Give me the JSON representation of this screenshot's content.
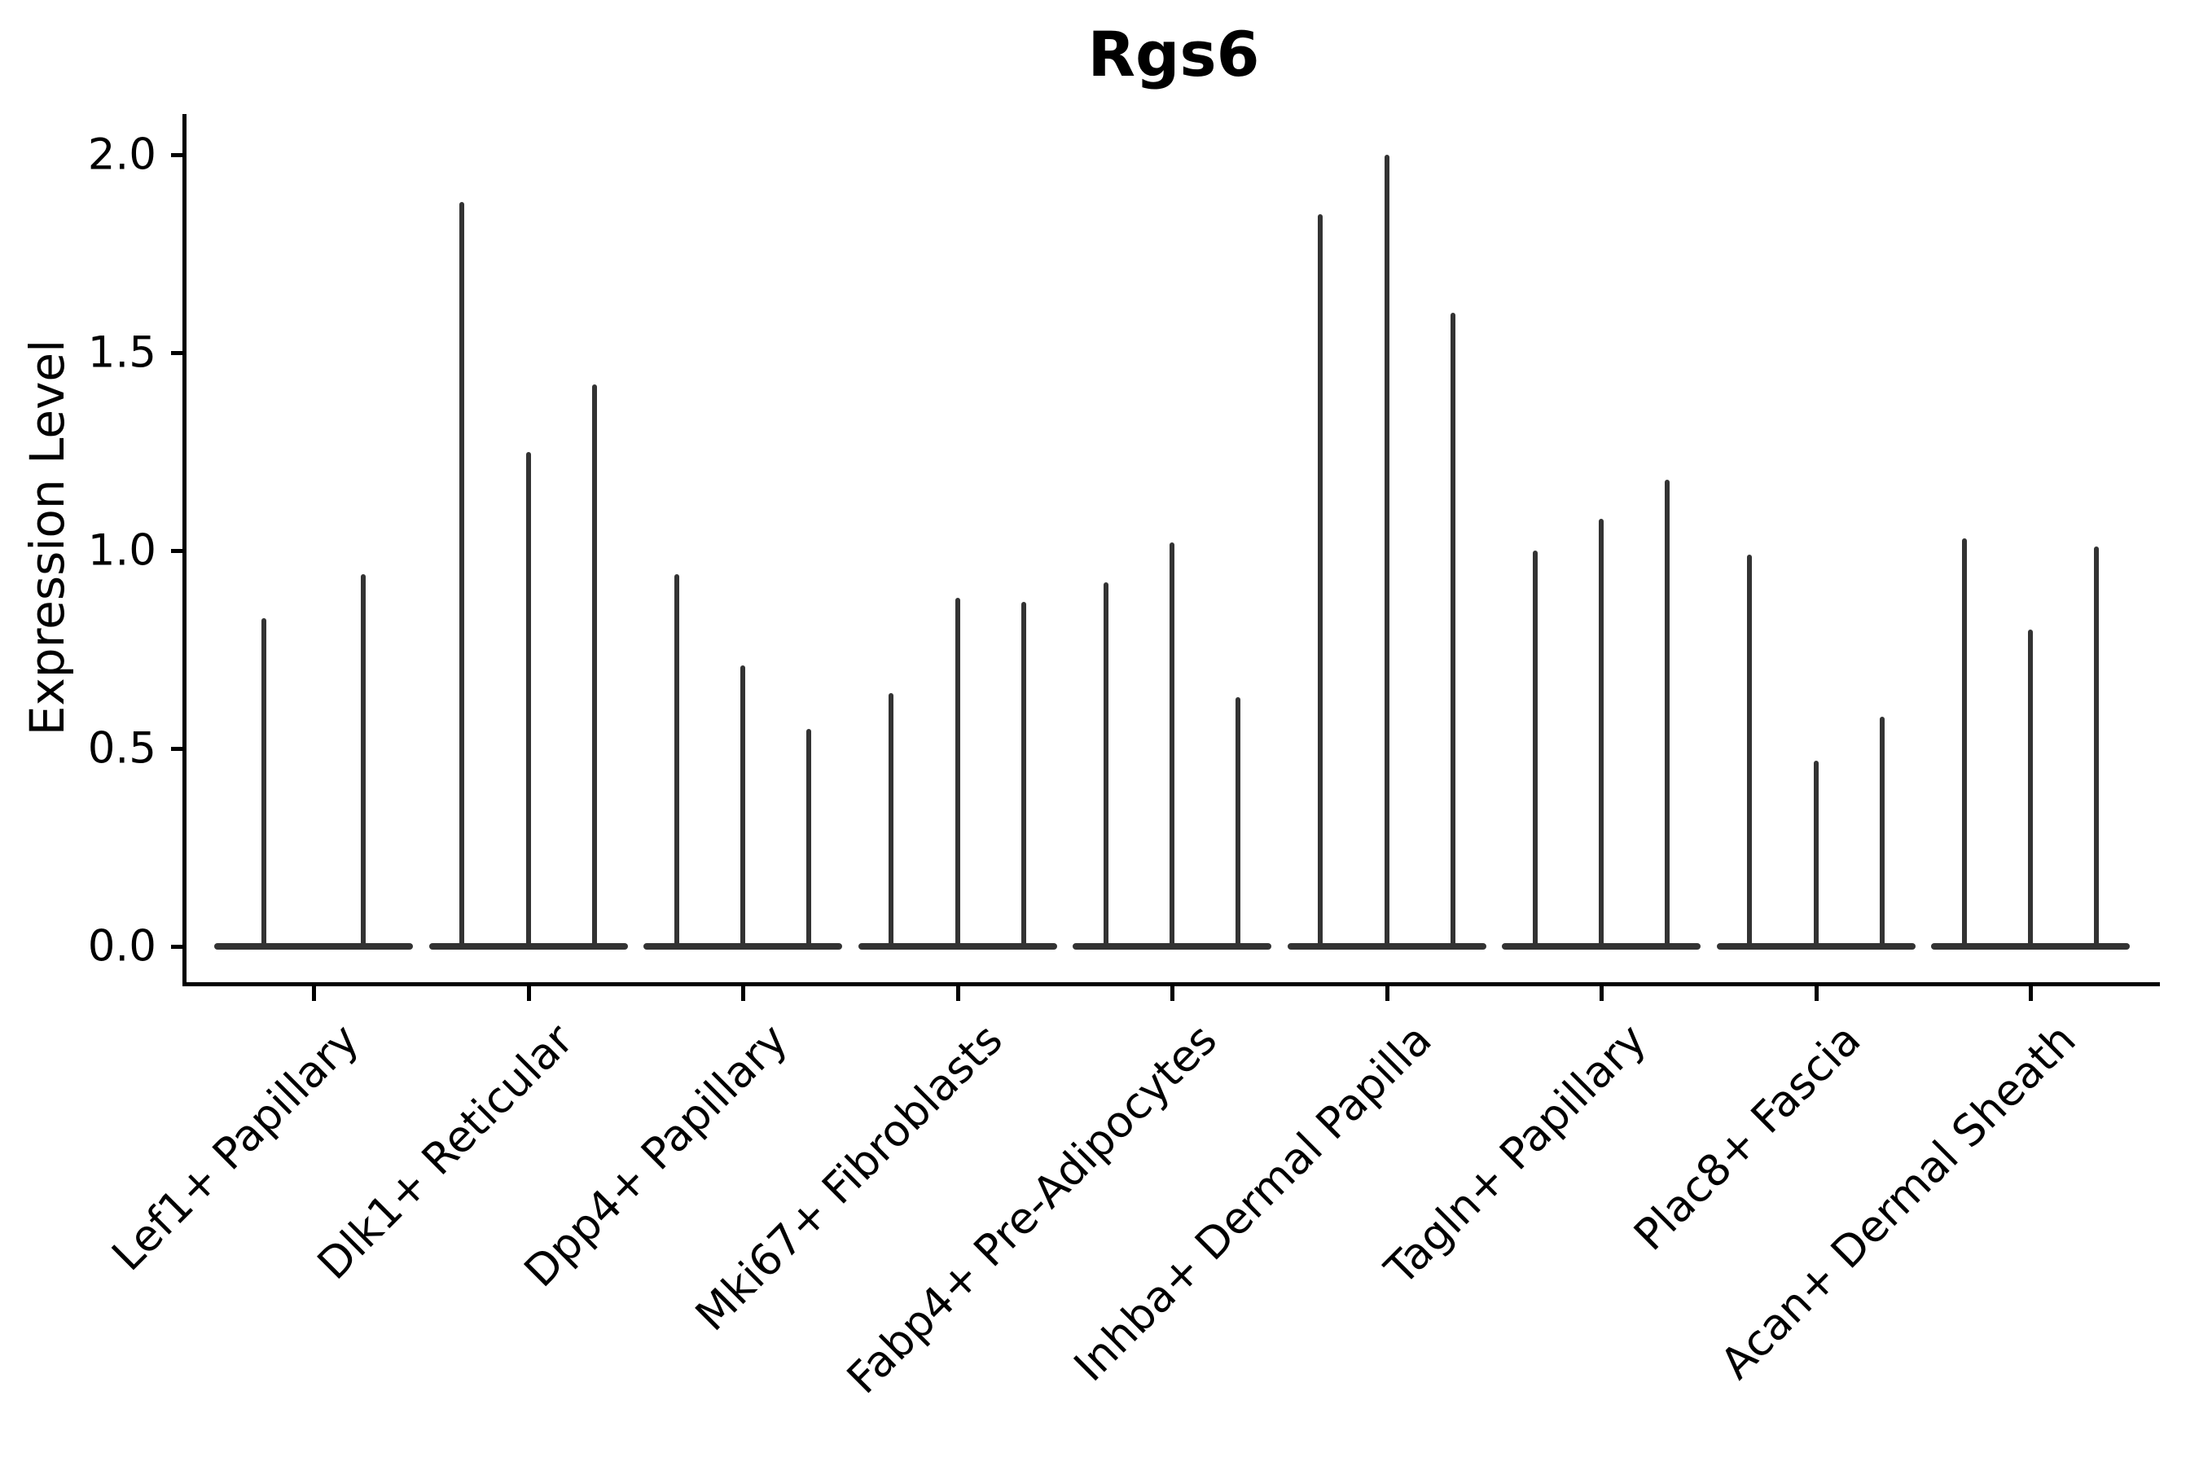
{
  "title": "Rgs6",
  "y_axis": {
    "label": "Expression Level",
    "ticks": [
      {
        "value": 2.0,
        "label": "2.0"
      },
      {
        "value": 1.5,
        "label": "1.5"
      },
      {
        "value": 1.0,
        "label": "1.0"
      },
      {
        "value": 0.5,
        "label": "0.5"
      },
      {
        "value": 0.0,
        "label": "0.0"
      }
    ]
  },
  "colors": {
    "violin": "#333333",
    "axis": "#000000",
    "text": "#000000",
    "background": "#ffffff"
  },
  "chart_data": {
    "type": "violin",
    "title": "Rgs6",
    "xlabel": "",
    "ylabel": "Expression Level",
    "ylim": [
      0,
      2.1
    ],
    "yticks": [
      0.0,
      0.5,
      1.0,
      1.5,
      2.0
    ],
    "grid": false,
    "legend": "none",
    "style": "collapsed violins: flat baseline bodies at 0 with thin spikes up to each group's maximum expression",
    "categories": [
      "Lef1+ Papillary",
      "Dlk1+ Reticular",
      "Dpp4+ Papillary",
      "Mki67+ Fibroblasts",
      "Fabp4+ Pre-Adipocytes",
      "Inhba+ Dermal Papilla",
      "Tagln+ Papillary",
      "Plac8+ Fascia",
      "Acan+ Dermal Sheath"
    ],
    "series": [
      {
        "category": "Lef1+ Papillary",
        "spike_maxima": [
          0.83,
          0.94
        ]
      },
      {
        "category": "Dlk1+ Reticular",
        "spike_maxima": [
          1.88,
          1.25,
          1.42
        ]
      },
      {
        "category": "Dpp4+ Papillary",
        "spike_maxima": [
          0.94,
          0.71,
          0.55
        ]
      },
      {
        "category": "Mki67+ Fibroblasts",
        "spike_maxima": [
          0.64,
          0.88,
          0.87
        ]
      },
      {
        "category": "Fabp4+ Pre-Adipocytes",
        "spike_maxima": [
          0.92,
          1.02,
          0.63
        ]
      },
      {
        "category": "Inhba+ Dermal Papilla",
        "spike_maxima": [
          1.85,
          2.0,
          1.6
        ]
      },
      {
        "category": "Tagln+ Papillary",
        "spike_maxima": [
          1.0,
          1.08,
          1.18
        ]
      },
      {
        "category": "Plac8+ Fascia",
        "spike_maxima": [
          0.99,
          0.47,
          0.58
        ]
      },
      {
        "category": "Acan+ Dermal Sheath",
        "spike_maxima": [
          1.03,
          0.8,
          1.01
        ]
      }
    ]
  }
}
